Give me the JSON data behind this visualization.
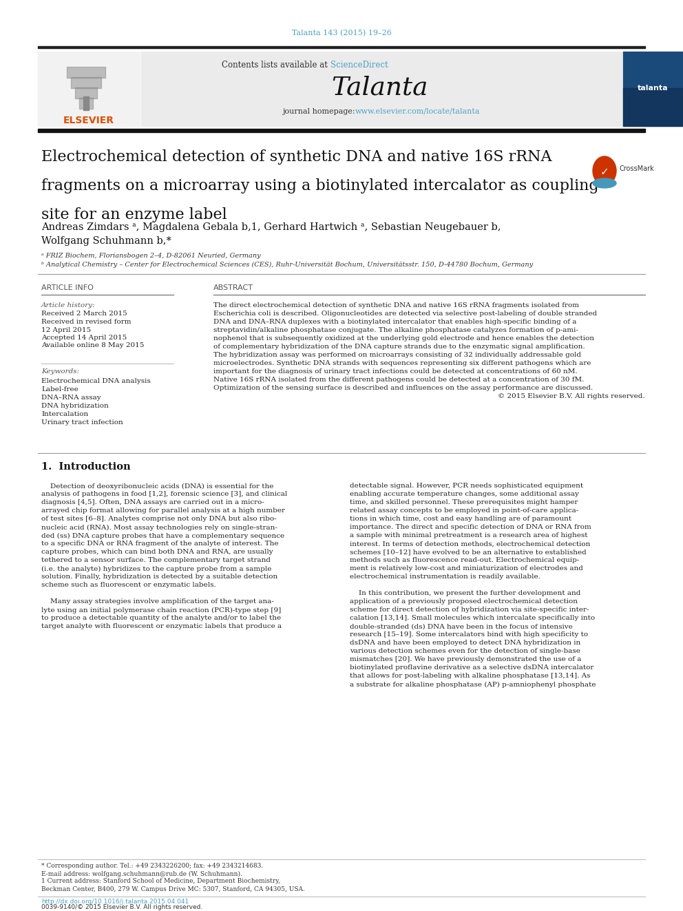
{
  "page_bg": "#ffffff",
  "header_citation": "Talanta 143 (2015) 19–26",
  "header_citation_color": "#4ba3c7",
  "journal_banner_bg": "#ebebeb",
  "contents_text": "Contents lists available at ",
  "sciencedirect_text": "ScienceDirect",
  "sciencedirect_color": "#4ba3c7",
  "journal_name": "Talanta",
  "journal_homepage_text": "journal homepage: ",
  "journal_url": "www.elsevier.com/locate/talanta",
  "journal_url_color": "#4ba3c7",
  "divider_color": "#111111",
  "article_title_lines": [
    "Electrochemical detection of synthetic DNA and native 16S rRNA",
    "fragments on a microarray using a biotinylated intercalator as coupling",
    "site for an enzyme label"
  ],
  "authors_line1": "Andreas Zimdars ᵃ, Magdalena Gebala b,1, Gerhard Hartwich ᵃ, Sebastian Neugebauer b,",
  "authors_line2": "Wolfgang Schuhmann b,*",
  "affil_a": "ᵃ FRIZ Biochem, Floriansbogen 2–4, D-82061 Neuried, Germany",
  "affil_b": "ᵇ Analytical Chemistry – Center for Electrochemical Sciences (CES), Ruhr-Universität Bochum, Universitätsstr. 150, D-44780 Bochum, Germany",
  "article_info_title": "ARTICLE INFO",
  "abstract_title": "ABSTRACT",
  "article_history_label": "Article history:",
  "article_history": [
    "Received 2 March 2015",
    "Received in revised form",
    "12 April 2015",
    "Accepted 14 April 2015",
    "Available online 8 May 2015"
  ],
  "keywords_label": "Keywords:",
  "keywords": [
    "Electrochemical DNA analysis",
    "Label-free",
    "DNA–RNA assay",
    "DNA hybridization",
    "Intercalation",
    "Urinary tract infection"
  ],
  "abstract_lines": [
    "The direct electrochemical detection of synthetic DNA and native 16S rRNA fragments isolated from",
    "Escherichia coli is described. Oligonucleotides are detected via selective post-labeling of double stranded",
    "DNA and DNA–RNA duplexes with a biotinylated intercalator that enables high-specific binding of a",
    "streptavidin/alkaline phosphatase conjugate. The alkaline phosphatase catalyzes formation of p-ami-",
    "nophenol that is subsequently oxidized at the underlying gold electrode and hence enables the detection",
    "of complementary hybridization of the DNA capture strands due to the enzymatic signal amplification.",
    "The hybridization assay was performed on microarrays consisting of 32 individually addressable gold",
    "microelectrodes. Synthetic DNA strands with sequences representing six different pathogens which are",
    "important for the diagnosis of urinary tract infections could be detected at concentrations of 60 nM.",
    "Native 16S rRNA isolated from the different pathogens could be detected at a concentration of 30 fM.",
    "Optimization of the sensing surface is described and influences on the assay performance are discussed.",
    "© 2015 Elsevier B.V. All rights reserved."
  ],
  "section1_title": "1.  Introduction",
  "col1_lines": [
    "    Detection of deoxyribonucleic acids (DNA) is essential for the",
    "analysis of pathogens in food [1,2], forensic science [3], and clinical",
    "diagnosis [4,5]. Often, DNA assays are carried out in a micro-",
    "arrayed chip format allowing for parallel analysis at a high number",
    "of test sites [6–8]. Analytes comprise not only DNA but also ribo-",
    "nucleic acid (RNA). Most assay technologies rely on single-stran-",
    "ded (ss) DNA capture probes that have a complementary sequence",
    "to a specific DNA or RNA fragment of the analyte of interest. The",
    "capture probes, which can bind both DNA and RNA, are usually",
    "tethered to a sensor surface. The complementary target strand",
    "(i.e. the analyte) hybridizes to the capture probe from a sample",
    "solution. Finally, hybridization is detected by a suitable detection",
    "scheme such as fluorescent or enzymatic labels.",
    "",
    "    Many assay strategies involve amplification of the target ana-",
    "lyte using an initial polymerase chain reaction (PCR)-type step [9]",
    "to produce a detectable quantity of the analyte and/or to label the",
    "target analyte with fluorescent or enzymatic labels that produce a"
  ],
  "col2_lines": [
    "detectable signal. However, PCR needs sophisticated equipment",
    "enabling accurate temperature changes, some additional assay",
    "time, and skilled personnel. These prerequisites might hamper",
    "related assay concepts to be employed in point-of-care applica-",
    "tions in which time, cost and easy handling are of paramount",
    "importance. The direct and specific detection of DNA or RNA from",
    "a sample with minimal pretreatment is a research area of highest",
    "interest. In terms of detection methods, electrochemical detection",
    "schemes [10–12] have evolved to be an alternative to established",
    "methods such as fluorescence read-out. Electrochemical equip-",
    "ment is relatively low-cost and miniaturization of electrodes and",
    "electrochemical instrumentation is readily available.",
    "",
    "    In this contribution, we present the further development and",
    "application of a previously proposed electrochemical detection",
    "scheme for direct detection of hybridization via site-specific inter-",
    "calation [13,14]. Small molecules which intercalate specifically into",
    "double-stranded (ds) DNA have been in the focus of intensive",
    "research [15–19]. Some intercalators bind with high specificity to",
    "dsDNA and have been employed to detect DNA hybridization in",
    "various detection schemes even for the detection of single-base",
    "mismatches [20]. We have previously demonstrated the use of a",
    "biotinylated proflavine derivative as a selective dsDNA intercalator",
    "that allows for post-labeling with alkaline phosphatase [13,14]. As",
    "a substrate for alkaline phosphatase (AP) p-amniophenyl phosphate"
  ],
  "footnote_star": "* Corresponding author. Tel.: +49 2343226200; fax: +49 2343214683.",
  "footnote_email": "E-mail address: wolfgang.schuhmann@rub.de (W. Schuhmann).",
  "footnote_1a": "1 Current address: Stanford School of Medicine, Department Biochemistry,",
  "footnote_1b": "Beckman Center, B400, 279 W. Campus Drive MC: 5307, Stanford, CA 94305, USA.",
  "doi_text": "http://dx.doi.org/10.1016/j.talanta.2015.04.041",
  "copyright_text": "0039-9140/© 2015 Elsevier B.V. All rights reserved."
}
